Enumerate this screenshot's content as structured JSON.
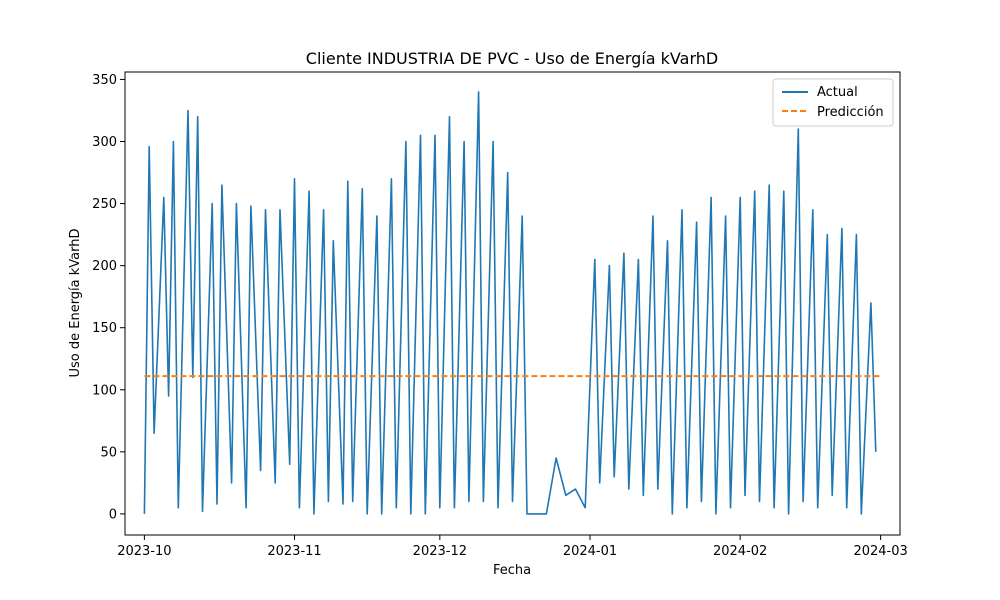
{
  "chart_data": {
    "type": "line",
    "title": "Cliente INDUSTRIA DE PVC - Uso de Energía kVarhD",
    "xlabel": "Fecha",
    "ylabel": "Uso de Energía kVarhD",
    "xlim": [
      "2023-09-27",
      "2024-03-05"
    ],
    "ylim": [
      -17,
      356
    ],
    "xticks": [
      "2023-10",
      "2023-11",
      "2023-12",
      "2024-01",
      "2024-02",
      "2024-03"
    ],
    "xtick_dates": [
      "2023-10-01",
      "2023-11-01",
      "2023-12-01",
      "2024-01-01",
      "2024-02-01",
      "2024-03-01"
    ],
    "yticks": [
      0,
      50,
      100,
      150,
      200,
      250,
      300,
      350
    ],
    "grid": false,
    "legend": {
      "position": "top-right",
      "entries": [
        "Actual",
        "Predicción"
      ]
    },
    "series": [
      {
        "name": "Actual",
        "style": "solid",
        "color": "#1f77b4",
        "x": [
          "2023-10-01",
          "2023-10-02",
          "2023-10-03",
          "2023-10-05",
          "2023-10-06",
          "2023-10-07",
          "2023-10-08",
          "2023-10-10",
          "2023-10-11",
          "2023-10-12",
          "2023-10-13",
          "2023-10-15",
          "2023-10-16",
          "2023-10-17",
          "2023-10-19",
          "2023-10-20",
          "2023-10-22",
          "2023-10-23",
          "2023-10-25",
          "2023-10-26",
          "2023-10-28",
          "2023-10-29",
          "2023-10-31",
          "2023-11-01",
          "2023-11-02",
          "2023-11-04",
          "2023-11-05",
          "2023-11-07",
          "2023-11-08",
          "2023-11-09",
          "2023-11-11",
          "2023-11-12",
          "2023-11-13",
          "2023-11-15",
          "2023-11-16",
          "2023-11-18",
          "2023-11-19",
          "2023-11-21",
          "2023-11-22",
          "2023-11-24",
          "2023-11-25",
          "2023-11-27",
          "2023-11-28",
          "2023-11-30",
          "2023-12-01",
          "2023-12-03",
          "2023-12-04",
          "2023-12-06",
          "2023-12-07",
          "2023-12-09",
          "2023-12-10",
          "2023-12-12",
          "2023-12-13",
          "2023-12-15",
          "2023-12-16",
          "2023-12-18",
          "2023-12-19",
          "2023-12-21",
          "2023-12-23",
          "2023-12-25",
          "2023-12-27",
          "2023-12-29",
          "2023-12-31",
          "2024-01-02",
          "2024-01-03",
          "2024-01-05",
          "2024-01-06",
          "2024-01-08",
          "2024-01-09",
          "2024-01-11",
          "2024-01-12",
          "2024-01-14",
          "2024-01-15",
          "2024-01-17",
          "2024-01-18",
          "2024-01-20",
          "2024-01-21",
          "2024-01-23",
          "2024-01-24",
          "2024-01-26",
          "2024-01-27",
          "2024-01-29",
          "2024-01-30",
          "2024-02-01",
          "2024-02-02",
          "2024-02-04",
          "2024-02-05",
          "2024-02-07",
          "2024-02-08",
          "2024-02-10",
          "2024-02-11",
          "2024-02-13",
          "2024-02-14",
          "2024-02-16",
          "2024-02-17",
          "2024-02-19",
          "2024-02-20",
          "2024-02-22",
          "2024-02-23",
          "2024-02-25",
          "2024-02-26",
          "2024-02-28",
          "2024-02-29"
        ],
        "values": [
          0,
          296,
          65,
          255,
          95,
          300,
          5,
          325,
          110,
          320,
          2,
          250,
          8,
          265,
          25,
          250,
          5,
          248,
          35,
          245,
          25,
          245,
          40,
          270,
          5,
          260,
          0,
          245,
          10,
          220,
          8,
          268,
          10,
          262,
          0,
          240,
          0,
          270,
          5,
          300,
          0,
          305,
          0,
          305,
          5,
          320,
          5,
          300,
          10,
          340,
          10,
          300,
          5,
          275,
          10,
          240,
          0,
          0,
          0,
          45,
          15,
          20,
          5,
          205,
          25,
          200,
          30,
          210,
          20,
          205,
          15,
          240,
          20,
          220,
          0,
          245,
          5,
          235,
          10,
          255,
          0,
          240,
          5,
          255,
          15,
          260,
          10,
          265,
          5,
          260,
          0,
          310,
          10,
          245,
          5,
          225,
          15,
          230,
          5,
          225,
          0,
          170,
          50
        ]
      },
      {
        "name": "Predicción",
        "style": "dashed",
        "color": "#ff7f0e",
        "x": [
          "2023-10-01",
          "2024-03-01"
        ],
        "values": [
          111,
          111
        ]
      }
    ]
  }
}
